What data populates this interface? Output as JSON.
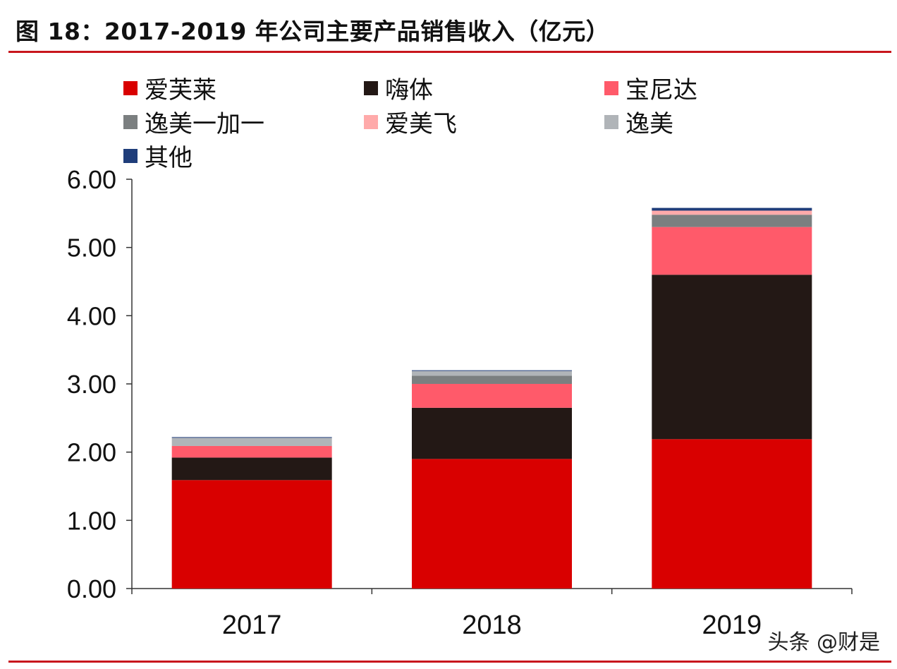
{
  "title": "图 18：2017-2019 年公司主要产品销售收入（亿元）",
  "watermark": "头条 @财是",
  "chart_data": {
    "type": "bar",
    "stacked": true,
    "title": "图 18：2017-2019 年公司主要产品销售收入（亿元）",
    "categories": [
      "2017",
      "2018",
      "2019"
    ],
    "ylim": [
      0,
      6
    ],
    "yticks": [
      "0.00",
      "1.00",
      "2.00",
      "3.00",
      "4.00",
      "5.00",
      "6.00"
    ],
    "grid": false,
    "legend_position": "top",
    "series": [
      {
        "name": "爱芙莱",
        "color": "#d90000",
        "values": [
          1.59,
          1.9,
          2.19
        ]
      },
      {
        "name": "嗨体",
        "color": "#231815",
        "values": [
          0.33,
          0.75,
          2.41
        ]
      },
      {
        "name": "宝尼达",
        "color": "#ff5a6a",
        "values": [
          0.17,
          0.35,
          0.7
        ]
      },
      {
        "name": "逸美一加一",
        "color": "#7b7f80",
        "values": [
          0.0,
          0.12,
          0.18
        ]
      },
      {
        "name": "爱美飞",
        "color": "#ffaaaa",
        "values": [
          0.0,
          0.0,
          0.06
        ]
      },
      {
        "name": "逸美",
        "color": "#b0b4b8",
        "values": [
          0.12,
          0.07,
          0.0
        ]
      },
      {
        "name": "其他",
        "color": "#1f3d7a",
        "values": [
          0.01,
          0.01,
          0.04
        ]
      }
    ]
  }
}
